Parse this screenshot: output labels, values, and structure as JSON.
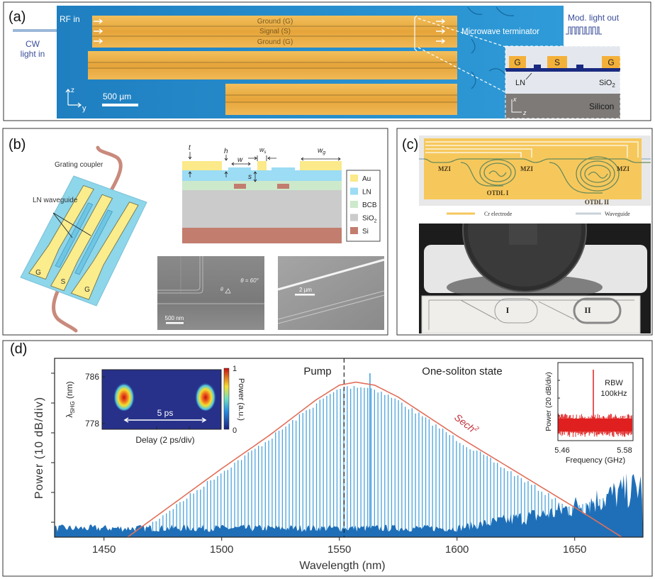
{
  "panel_a": {
    "tag": "(a)",
    "rf_in": "RF in",
    "cw_light_in_1": "CW",
    "cw_light_in_2": "light in",
    "electrodes": [
      "Ground (G)",
      "Signal (S)",
      "Ground (G)"
    ],
    "microwave_terminator": "Microwave terminator",
    "mod_light_out": "Mod. light out",
    "scale_bar": "500 µm",
    "axis_z": "z",
    "axis_y": "y",
    "inset": {
      "g1": "G",
      "s": "S",
      "g2": "G",
      "ln": "LN",
      "sio2": "SiO",
      "sio2_sub": "2",
      "silicon": "Silicon",
      "axis_x": "x",
      "axis_z": "z"
    },
    "colors": {
      "substrate": "#1f84c4",
      "gold": "#eab04a"
    }
  },
  "panel_b": {
    "tag": "(b)",
    "grating_coupler": "Grating coupler",
    "ln_waveguide": "LN waveguide",
    "electrode_labels": [
      "G",
      "S",
      "G"
    ],
    "dims": {
      "t": "t",
      "h": "h",
      "w": "w",
      "ws": "w",
      "ws_sub": "s",
      "wg": "w",
      "wg_sub": "g",
      "s": "s"
    },
    "legend": [
      {
        "label": "Au",
        "color": "#fbe98a"
      },
      {
        "label": "LN",
        "color": "#9cdcf4"
      },
      {
        "label": "BCB",
        "color": "#cde9cc"
      },
      {
        "label": "SiO",
        "sub": "2",
        "color": "#cbcbcb"
      },
      {
        "label": "Si",
        "color": "#c27d6e"
      }
    ],
    "sem1_angle": "θ = 60°",
    "sem1_theta": "θ",
    "sem1_scale": "500 nm",
    "sem2_scale": "2 µm"
  },
  "panel_c": {
    "tag": "(c)",
    "mzi_labels": [
      "MZI",
      "MZI",
      "MZI"
    ],
    "otdl1": "OTDL I",
    "otdl2": "OTDL II",
    "legend_electrode": "Cr electrode",
    "legend_waveguide": "Waveguide",
    "chip_label_1": "I",
    "chip_label_2": "II"
  },
  "panel_d": {
    "tag": "(d)",
    "pump": "Pump",
    "state": "One-soliton state",
    "fit": "Sech",
    "fit_sup": "2",
    "inset_left": {
      "ylabel": "λ",
      "ylabel_sub": "SHG",
      "ylabel_unit": " (nm)",
      "yticks": [
        "786",
        "778"
      ],
      "xlabel": "Delay (2 ps/div)",
      "annotation": "5 ps",
      "colorbar_label": "Power (a.u.)",
      "colorbar_max": "1",
      "colorbar_min": "0"
    },
    "inset_right": {
      "ylabel": "Power (20 dB/div)",
      "xticks": [
        "5.46",
        "5.58"
      ],
      "xlabel": "Frequency (GHz)",
      "rbw_1": "RBW",
      "rbw_2": "100kHz",
      "peak_frequency_ghz": 5.52,
      "color": "#e02020"
    }
  },
  "chart_data": {
    "type": "line",
    "xlabel": "Wavelength (nm)",
    "ylabel": "Power (10 dB/div)",
    "xlim": [
      1429,
      1679
    ],
    "ylim": [
      0,
      6
    ],
    "xticks": [
      1450,
      1500,
      1550,
      1600,
      1650
    ],
    "xtick_labels": [
      "1450",
      "1500",
      "1550",
      "1600",
      "1650"
    ],
    "yticks": [
      0.5,
      1.5,
      2.5,
      3.5,
      4.5,
      5.5
    ],
    "grid": false,
    "pump_wavelength": 1552,
    "comb": {
      "start": 1462,
      "end": 1666,
      "spacing": 1.45,
      "color": "#4aa3dc"
    },
    "envelope_sech2": [
      [
        1460,
        0
      ],
      [
        1480,
        1.15
      ],
      [
        1500,
        2.3
      ],
      [
        1520,
        3.4
      ],
      [
        1540,
        4.6
      ],
      [
        1550,
        5.1
      ],
      [
        1557,
        5.2
      ],
      [
        1565,
        5.1
      ],
      [
        1575,
        4.7
      ],
      [
        1600,
        3.4
      ],
      [
        1625,
        2.2
      ],
      [
        1650,
        1.0
      ],
      [
        1670,
        0
      ]
    ],
    "noise_floor": [
      [
        1429,
        0.3
      ],
      [
        1600,
        0.3
      ],
      [
        1640,
        0.8
      ],
      [
        1679,
        1.7
      ]
    ],
    "highlight_lines": [
      [
        1563,
        5.5
      ],
      [
        1552,
        1.5
      ]
    ],
    "colors": {
      "fit": "#e0705a",
      "floor": "#1f6fb8"
    }
  }
}
